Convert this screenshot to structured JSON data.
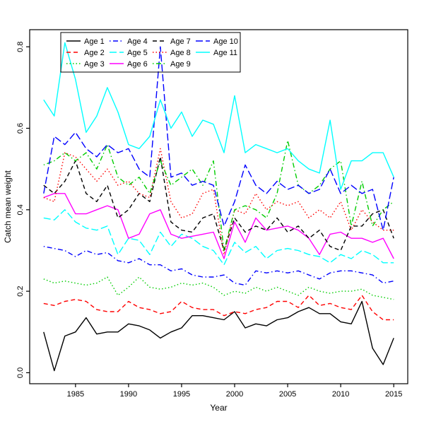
{
  "figure": {
    "background": "#ffffff",
    "border_color": "#000000"
  },
  "chart_data": {
    "type": "line",
    "title": "",
    "xlabel": "Year",
    "ylabel": "Catch mean weight",
    "grid": false,
    "legend_position": "top-left",
    "legend_columns": 4,
    "legend_rows": 3,
    "xlim": [
      1980.68,
      2016.32
    ],
    "ylim": [
      -0.027,
      0.842
    ],
    "x_ticks": [
      "1985",
      "1990",
      "1995",
      "2000",
      "2005",
      "2010",
      "2015"
    ],
    "x_tick_values": [
      1985,
      1990,
      1995,
      2000,
      2005,
      2010,
      2015
    ],
    "y_ticks": [
      "0.0",
      "0.2",
      "0.4",
      "0.6",
      "0.8"
    ],
    "y_tick_values": [
      0.0,
      0.2,
      0.4,
      0.6,
      0.8
    ],
    "x": [
      1982,
      1983,
      1984,
      1985,
      1986,
      1987,
      1988,
      1989,
      1990,
      1991,
      1992,
      1993,
      1994,
      1995,
      1996,
      1997,
      1998,
      1999,
      2000,
      2001,
      2002,
      2003,
      2004,
      2005,
      2006,
      2007,
      2008,
      2009,
      2010,
      2011,
      2012,
      2013,
      2014,
      2015
    ],
    "series": [
      {
        "name": "Age 1",
        "color": "#000000",
        "linestyle": "solid",
        "values": [
          0.1,
          0.005,
          0.09,
          0.1,
          0.135,
          0.095,
          0.1,
          0.1,
          0.12,
          0.115,
          0.105,
          0.085,
          0.1,
          0.11,
          0.14,
          0.14,
          0.135,
          0.13,
          0.15,
          0.11,
          0.12,
          0.115,
          0.13,
          0.135,
          0.15,
          0.16,
          0.145,
          0.145,
          0.125,
          0.12,
          0.175,
          0.06,
          0.02,
          0.085
        ]
      },
      {
        "name": "Age 2",
        "color": "#ff0000",
        "linestyle": "dashed",
        "values": [
          0.17,
          0.165,
          0.175,
          0.18,
          0.175,
          0.155,
          0.15,
          0.15,
          0.175,
          0.16,
          0.155,
          0.145,
          0.15,
          0.175,
          0.16,
          0.155,
          0.155,
          0.14,
          0.15,
          0.145,
          0.155,
          0.16,
          0.175,
          0.175,
          0.16,
          0.19,
          0.165,
          0.17,
          0.16,
          0.155,
          0.19,
          0.15,
          0.13,
          0.13
        ]
      },
      {
        "name": "Age 3",
        "color": "#00cd00",
        "linestyle": "dotted",
        "values": [
          0.23,
          0.22,
          0.225,
          0.22,
          0.215,
          0.22,
          0.235,
          0.19,
          0.21,
          0.235,
          0.21,
          0.205,
          0.21,
          0.22,
          0.215,
          0.22,
          0.21,
          0.19,
          0.2,
          0.195,
          0.21,
          0.2,
          0.21,
          0.2,
          0.19,
          0.21,
          0.2,
          0.195,
          0.2,
          0.2,
          0.205,
          0.19,
          0.185,
          0.18
        ]
      },
      {
        "name": "Age 4",
        "color": "#0000ff",
        "linestyle": "dashdot",
        "values": [
          0.31,
          0.305,
          0.3,
          0.285,
          0.3,
          0.29,
          0.295,
          0.275,
          0.27,
          0.28,
          0.265,
          0.265,
          0.25,
          0.255,
          0.24,
          0.235,
          0.235,
          0.24,
          0.22,
          0.215,
          0.25,
          0.245,
          0.25,
          0.245,
          0.25,
          0.24,
          0.23,
          0.245,
          0.25,
          0.25,
          0.245,
          0.24,
          0.22,
          0.225
        ]
      },
      {
        "name": "Age 5",
        "color": "#00ffff",
        "linestyle": "longdash",
        "values": [
          0.38,
          0.375,
          0.4,
          0.37,
          0.355,
          0.35,
          0.36,
          0.29,
          0.33,
          0.325,
          0.29,
          0.345,
          0.31,
          0.34,
          0.33,
          0.31,
          0.3,
          0.265,
          0.32,
          0.295,
          0.31,
          0.28,
          0.3,
          0.305,
          0.3,
          0.29,
          0.285,
          0.27,
          0.29,
          0.28,
          0.3,
          0.29,
          0.27,
          0.27
        ]
      },
      {
        "name": "Age 6",
        "color": "#ff00ff",
        "linestyle": "solid",
        "values": [
          0.43,
          0.44,
          0.44,
          0.39,
          0.39,
          0.4,
          0.41,
          0.4,
          0.33,
          0.34,
          0.39,
          0.4,
          0.34,
          0.33,
          0.335,
          0.34,
          0.345,
          0.28,
          0.37,
          0.32,
          0.38,
          0.35,
          0.355,
          0.36,
          0.35,
          0.33,
          0.29,
          0.34,
          0.345,
          0.33,
          0.33,
          0.32,
          0.33,
          0.28
        ]
      },
      {
        "name": "Age 7",
        "color": "#000000",
        "linestyle": "dashed",
        "values": [
          0.46,
          0.44,
          0.47,
          0.52,
          0.44,
          0.42,
          0.46,
          0.38,
          0.4,
          0.44,
          0.42,
          0.53,
          0.37,
          0.35,
          0.345,
          0.38,
          0.39,
          0.3,
          0.38,
          0.345,
          0.36,
          0.35,
          0.38,
          0.345,
          0.36,
          0.33,
          0.35,
          0.31,
          0.3,
          0.36,
          0.36,
          0.39,
          0.4,
          0.33
        ]
      },
      {
        "name": "Age 8",
        "color": "#ff0000",
        "linestyle": "dotted",
        "values": [
          0.43,
          0.42,
          0.54,
          0.53,
          0.5,
          0.47,
          0.5,
          0.46,
          0.47,
          0.44,
          0.43,
          0.55,
          0.42,
          0.38,
          0.39,
          0.44,
          0.45,
          0.29,
          0.4,
          0.39,
          0.44,
          0.4,
          0.42,
          0.41,
          0.42,
          0.38,
          0.4,
          0.38,
          0.42,
          0.35,
          0.4,
          0.37,
          0.35,
          0.35
        ]
      },
      {
        "name": "Age 9",
        "color": "#00cd00",
        "linestyle": "dashdot",
        "values": [
          0.51,
          0.52,
          0.54,
          0.52,
          0.54,
          0.5,
          0.56,
          0.48,
          0.46,
          0.48,
          0.44,
          0.52,
          0.46,
          0.48,
          0.5,
          0.46,
          0.52,
          0.3,
          0.4,
          0.41,
          0.4,
          0.38,
          0.44,
          0.57,
          0.46,
          0.44,
          0.46,
          0.5,
          0.52,
          0.36,
          0.47,
          0.36,
          0.4,
          0.42
        ]
      },
      {
        "name": "Age 10",
        "color": "#0000ff",
        "linestyle": "longdash",
        "values": [
          0.44,
          0.58,
          0.56,
          0.59,
          0.55,
          0.53,
          0.56,
          0.54,
          0.55,
          0.5,
          0.48,
          0.8,
          0.48,
          0.49,
          0.46,
          0.47,
          0.46,
          0.36,
          0.42,
          0.51,
          0.46,
          0.44,
          0.47,
          0.45,
          0.46,
          0.44,
          0.45,
          0.5,
          0.44,
          0.46,
          0.44,
          0.45,
          0.35,
          0.48
        ]
      },
      {
        "name": "Age 11",
        "color": "#00ffff",
        "linestyle": "solid",
        "values": [
          0.67,
          0.63,
          0.81,
          0.72,
          0.59,
          0.63,
          0.7,
          0.64,
          0.56,
          0.55,
          0.58,
          0.67,
          0.6,
          0.64,
          0.58,
          0.62,
          0.61,
          0.54,
          0.68,
          0.54,
          0.56,
          0.55,
          0.54,
          0.55,
          0.52,
          0.5,
          0.49,
          0.62,
          0.45,
          0.52,
          0.52,
          0.54,
          0.54,
          0.48
        ]
      }
    ]
  }
}
